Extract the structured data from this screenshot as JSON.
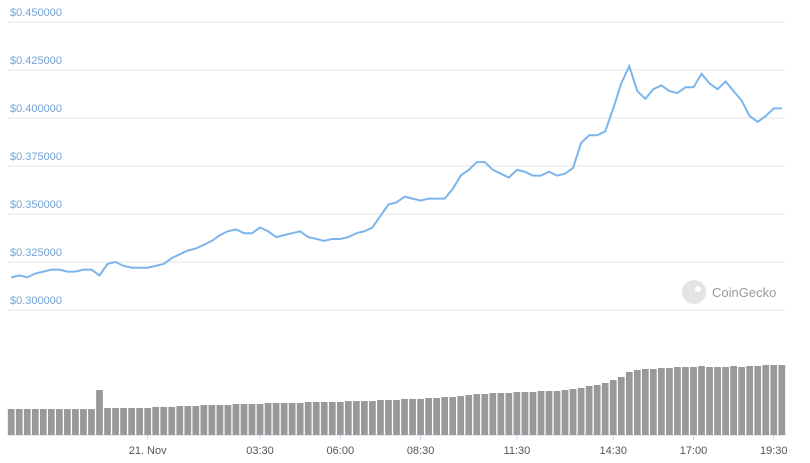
{
  "chart_data": {
    "type": "line",
    "watermark": "CoinGecko",
    "xlim": [
      -4.35,
      19.85
    ],
    "ylim": [
      0.3,
      0.45
    ],
    "y2lim": [
      0,
      100
    ],
    "grid": true,
    "yticks": [
      {
        "value": 0.3,
        "label": "$0.300000"
      },
      {
        "value": 0.325,
        "label": "$0.325000"
      },
      {
        "value": 0.35,
        "label": "$0.350000"
      },
      {
        "value": 0.375,
        "label": "$0.375000"
      },
      {
        "value": 0.4,
        "label": "$0.400000"
      },
      {
        "value": 0.425,
        "label": "$0.425000"
      },
      {
        "value": 0.45,
        "label": "$0.450000"
      }
    ],
    "xticks": [
      {
        "value": 0,
        "label": "21. Nov"
      },
      {
        "value": 3.5,
        "label": "03:30"
      },
      {
        "value": 6,
        "label": "06:00"
      },
      {
        "value": 8.5,
        "label": "08:30"
      },
      {
        "value": 11.5,
        "label": "11:30"
      },
      {
        "value": 14.5,
        "label": "14:30"
      },
      {
        "value": 17,
        "label": "17:00"
      },
      {
        "value": 19.5,
        "label": "19:30"
      }
    ],
    "x": [
      -4.25,
      -4,
      -3.75,
      -3.5,
      -3.25,
      -3,
      -2.75,
      -2.5,
      -2.25,
      -2,
      -1.75,
      -1.5,
      -1.25,
      -1,
      -0.75,
      -0.5,
      -0.25,
      0,
      0.25,
      0.5,
      0.75,
      1,
      1.25,
      1.5,
      1.75,
      2,
      2.25,
      2.5,
      2.75,
      3,
      3.25,
      3.5,
      3.75,
      4,
      4.25,
      4.5,
      4.75,
      5,
      5.25,
      5.5,
      5.75,
      6,
      6.25,
      6.5,
      6.75,
      7,
      7.25,
      7.5,
      7.75,
      8,
      8.25,
      8.5,
      8.75,
      9,
      9.25,
      9.5,
      9.75,
      10,
      10.25,
      10.5,
      10.75,
      11,
      11.25,
      11.5,
      11.75,
      12,
      12.25,
      12.5,
      12.75,
      13,
      13.25,
      13.5,
      13.75,
      14,
      14.25,
      14.5,
      14.75,
      15,
      15.25,
      15.5,
      15.75,
      16,
      16.25,
      16.5,
      16.75,
      17,
      17.25,
      17.5,
      17.75,
      18,
      18.25,
      18.5,
      18.75,
      19,
      19.25,
      19.5,
      19.75
    ],
    "series": [
      {
        "color": "#7cb5ec",
        "values": [
          0.317,
          0.318,
          0.317,
          0.319,
          0.32,
          0.321,
          0.321,
          0.32,
          0.32,
          0.321,
          0.321,
          0.318,
          0.324,
          0.325,
          0.323,
          0.322,
          0.322,
          0.322,
          0.323,
          0.324,
          0.327,
          0.329,
          0.331,
          0.332,
          0.334,
          0.336,
          0.339,
          0.341,
          0.342,
          0.34,
          0.34,
          0.343,
          0.341,
          0.338,
          0.339,
          0.34,
          0.341,
          0.338,
          0.337,
          0.336,
          0.337,
          0.337,
          0.338,
          0.34,
          0.341,
          0.343,
          0.349,
          0.355,
          0.356,
          0.359,
          0.358,
          0.357,
          0.358,
          0.358,
          0.358,
          0.363,
          0.37,
          0.373,
          0.377,
          0.377,
          0.373,
          0.371,
          0.369,
          0.373,
          0.372,
          0.37,
          0.37,
          0.372,
          0.37,
          0.371,
          0.374,
          0.387,
          0.391,
          0.391,
          0.393,
          0.405,
          0.418,
          0.427,
          0.414,
          0.41,
          0.415,
          0.417,
          0.414,
          0.413,
          0.416,
          0.416,
          0.423,
          0.418,
          0.415,
          0.419,
          0.414,
          0.409,
          0.401,
          0.398,
          0.401,
          0.405,
          0.405
        ]
      },
      {
        "type": "bar",
        "axis": "y2",
        "color": "#999999",
        "values": [
          26,
          26,
          26,
          26,
          26,
          26,
          26,
          26,
          26,
          26,
          26,
          45,
          27,
          27,
          27,
          27,
          27,
          27,
          28,
          28,
          28,
          29,
          29,
          29,
          30,
          30,
          30,
          30,
          31,
          31,
          31,
          31,
          32,
          32,
          32,
          32,
          32,
          33,
          33,
          33,
          33,
          33,
          34,
          34,
          34,
          34,
          35,
          35,
          35,
          36,
          36,
          36,
          37,
          37,
          38,
          38,
          39,
          40,
          41,
          41,
          42,
          42,
          42,
          43,
          43,
          43,
          44,
          44,
          44,
          45,
          46,
          47,
          49,
          50,
          52,
          55,
          58,
          63,
          65,
          66,
          66,
          67,
          67,
          68,
          68,
          68,
          69,
          68,
          68,
          68,
          69,
          68,
          69,
          69,
          70,
          70,
          70
        ]
      }
    ]
  }
}
